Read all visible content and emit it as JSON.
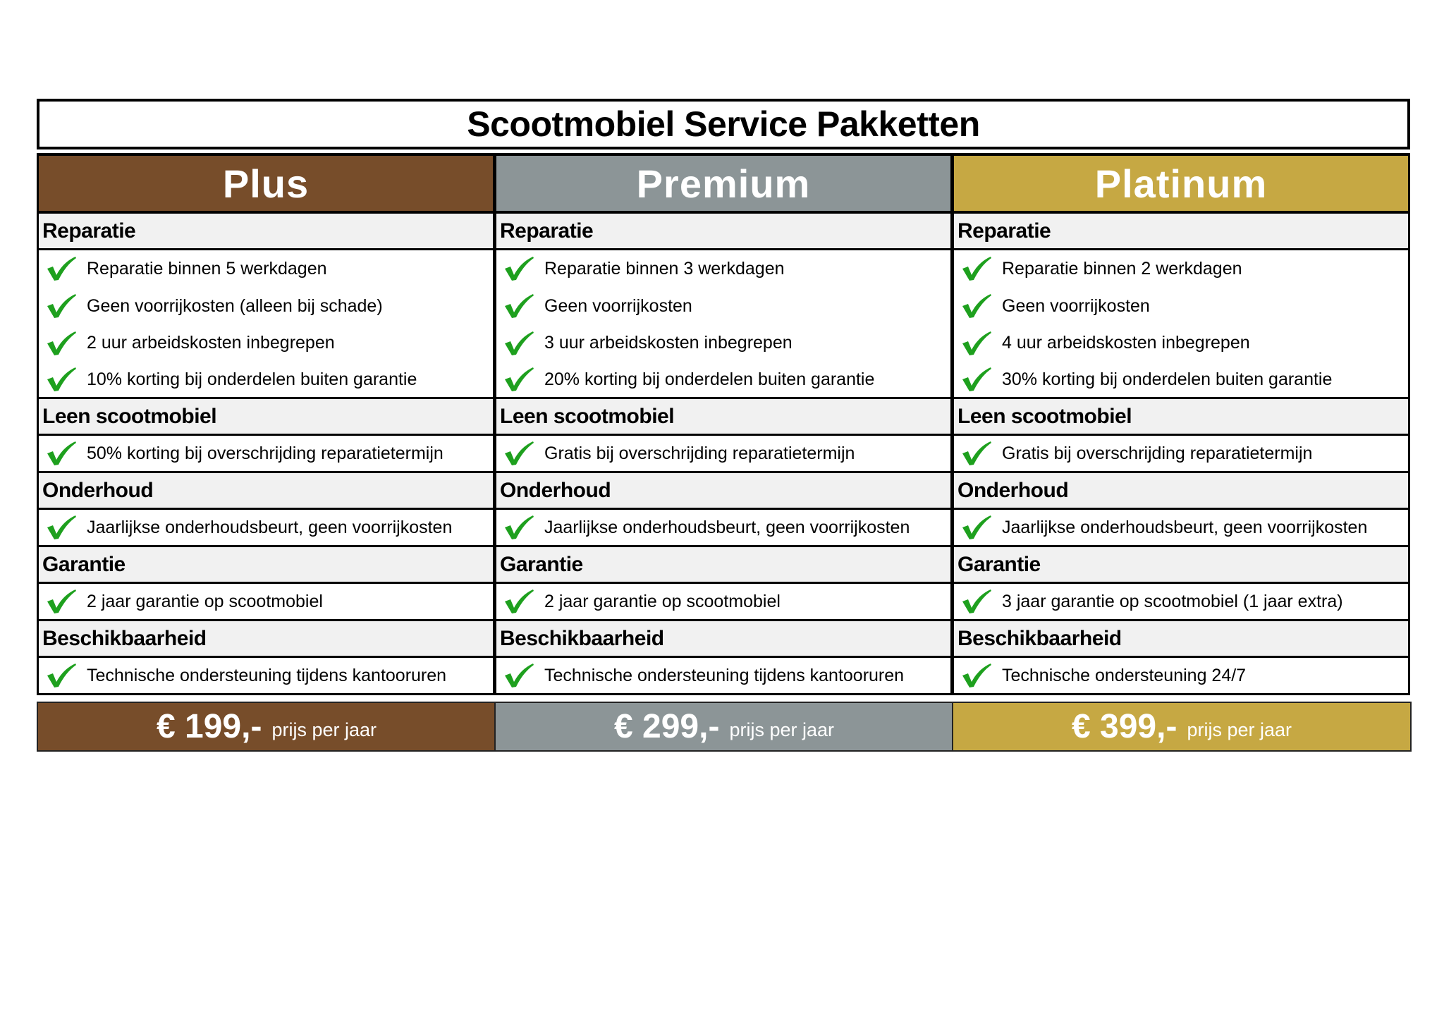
{
  "title": "Scootmobiel Service Pakketten",
  "colors": {
    "check": "#1ea01e",
    "section_bg": "#f1f1f1"
  },
  "plans": [
    {
      "name": "Plus",
      "color": "#774d2a",
      "price": "€ 199,-",
      "price_suffix": "prijs per jaar",
      "sections": [
        {
          "heading": "Reparatie",
          "items": [
            "Reparatie binnen 5 werkdagen",
            "Geen voorrijkosten (alleen bij schade)",
            "2 uur arbeidskosten inbegrepen",
            "10% korting bij onderdelen buiten garantie"
          ]
        },
        {
          "heading": "Leen scootmobiel",
          "items": [
            "50% korting bij overschrijding reparatietermijn"
          ]
        },
        {
          "heading": "Onderhoud",
          "items": [
            "Jaarlijkse onderhoudsbeurt, geen voorrijkosten"
          ]
        },
        {
          "heading": "Garantie",
          "items": [
            "2 jaar garantie op scootmobiel"
          ]
        },
        {
          "heading": "Beschikbaarheid",
          "items": [
            "Technische ondersteuning tijdens kantooruren"
          ]
        }
      ]
    },
    {
      "name": "Premium",
      "color": "#8c9597",
      "price": "€ 299,-",
      "price_suffix": "prijs per jaar",
      "sections": [
        {
          "heading": "Reparatie",
          "items": [
            "Reparatie binnen 3 werkdagen",
            "Geen voorrijkosten",
            "3 uur arbeidskosten inbegrepen",
            "20% korting bij onderdelen buiten garantie"
          ]
        },
        {
          "heading": "Leen scootmobiel",
          "items": [
            "Gratis bij overschrijding reparatietermijn"
          ]
        },
        {
          "heading": "Onderhoud",
          "items": [
            "Jaarlijkse onderhoudsbeurt, geen voorrijkosten"
          ]
        },
        {
          "heading": "Garantie",
          "items": [
            "2 jaar garantie op scootmobiel"
          ]
        },
        {
          "heading": "Beschikbaarheid",
          "items": [
            "Technische ondersteuning tijdens kantooruren"
          ]
        }
      ]
    },
    {
      "name": "Platinum",
      "color": "#c6a843",
      "price": "€ 399,-",
      "price_suffix": "prijs per jaar",
      "sections": [
        {
          "heading": "Reparatie",
          "items": [
            "Reparatie binnen 2 werkdagen",
            "Geen voorrijkosten",
            "4 uur arbeidskosten inbegrepen",
            "30% korting bij onderdelen buiten garantie"
          ]
        },
        {
          "heading": "Leen scootmobiel",
          "items": [
            "Gratis bij overschrijding reparatietermijn"
          ]
        },
        {
          "heading": "Onderhoud",
          "items": [
            "Jaarlijkse onderhoudsbeurt, geen voorrijkosten"
          ]
        },
        {
          "heading": "Garantie",
          "items": [
            "3 jaar garantie op scootmobiel (1 jaar extra)"
          ]
        },
        {
          "heading": "Beschikbaarheid",
          "items": [
            "Technische ondersteuning 24/7"
          ]
        }
      ]
    }
  ]
}
